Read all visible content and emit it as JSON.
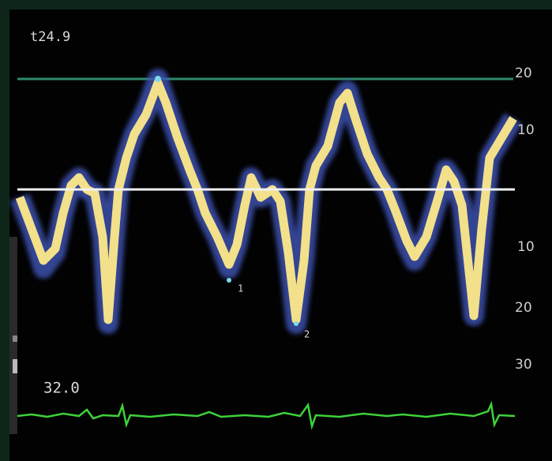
{
  "header": {
    "velocity_scale": "t24.9"
  },
  "scale_labels": [
    "20",
    "10",
    "10",
    "20",
    "30"
  ],
  "markers": [
    "1",
    "2"
  ],
  "footer": {
    "heart_rate": "32.0"
  }
}
